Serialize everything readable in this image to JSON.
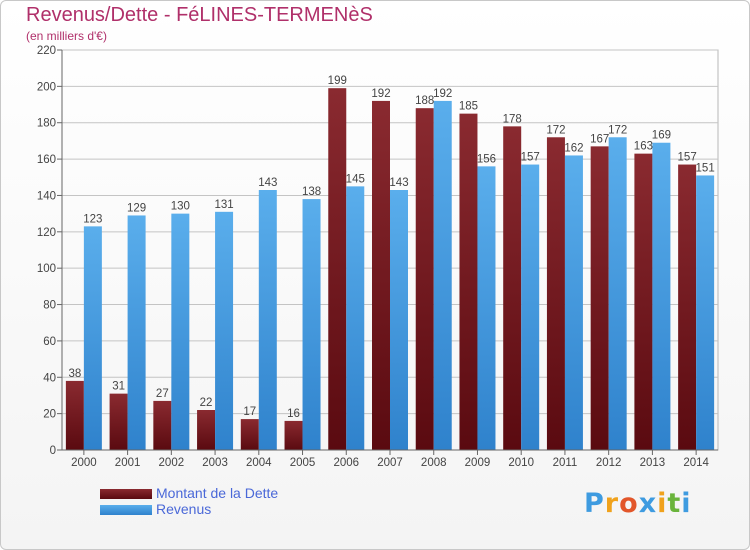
{
  "header": {
    "title": "Revenus/Dette - FéLINES-TERMENèS",
    "subtitle": "(en milliers d'€)"
  },
  "chart_data": {
    "type": "bar",
    "categories": [
      "2000",
      "2001",
      "2002",
      "2003",
      "2004",
      "2005",
      "2006",
      "2007",
      "2008",
      "2009",
      "2010",
      "2011",
      "2012",
      "2013",
      "2014"
    ],
    "series": [
      {
        "name": "Montant de la Dette",
        "color": "#7a1f24",
        "values": [
          38,
          31,
          27,
          22,
          17,
          16,
          199,
          192,
          188,
          185,
          178,
          172,
          167,
          163,
          157
        ]
      },
      {
        "name": "Revenus",
        "color": "#4ea2e6",
        "values": [
          123,
          129,
          130,
          131,
          143,
          138,
          145,
          143,
          192,
          156,
          157,
          162,
          172,
          169,
          151
        ]
      }
    ],
    "yticks": [
      "0",
      "20",
      "40",
      "60",
      "80",
      "100",
      "120",
      "140",
      "160",
      "180",
      "200",
      "220"
    ],
    "ylim": [
      0,
      220
    ],
    "grid": true,
    "legend_position": "bottom-left"
  },
  "logo": {
    "letters": [
      "P",
      "r",
      "o",
      "x",
      "i",
      "t",
      "i"
    ],
    "colors": [
      "#3e9be0",
      "#f0a21c",
      "#e2562a",
      "#3e9be0",
      "#f0a21c",
      "#6ab43c",
      "#3e9be0"
    ]
  }
}
